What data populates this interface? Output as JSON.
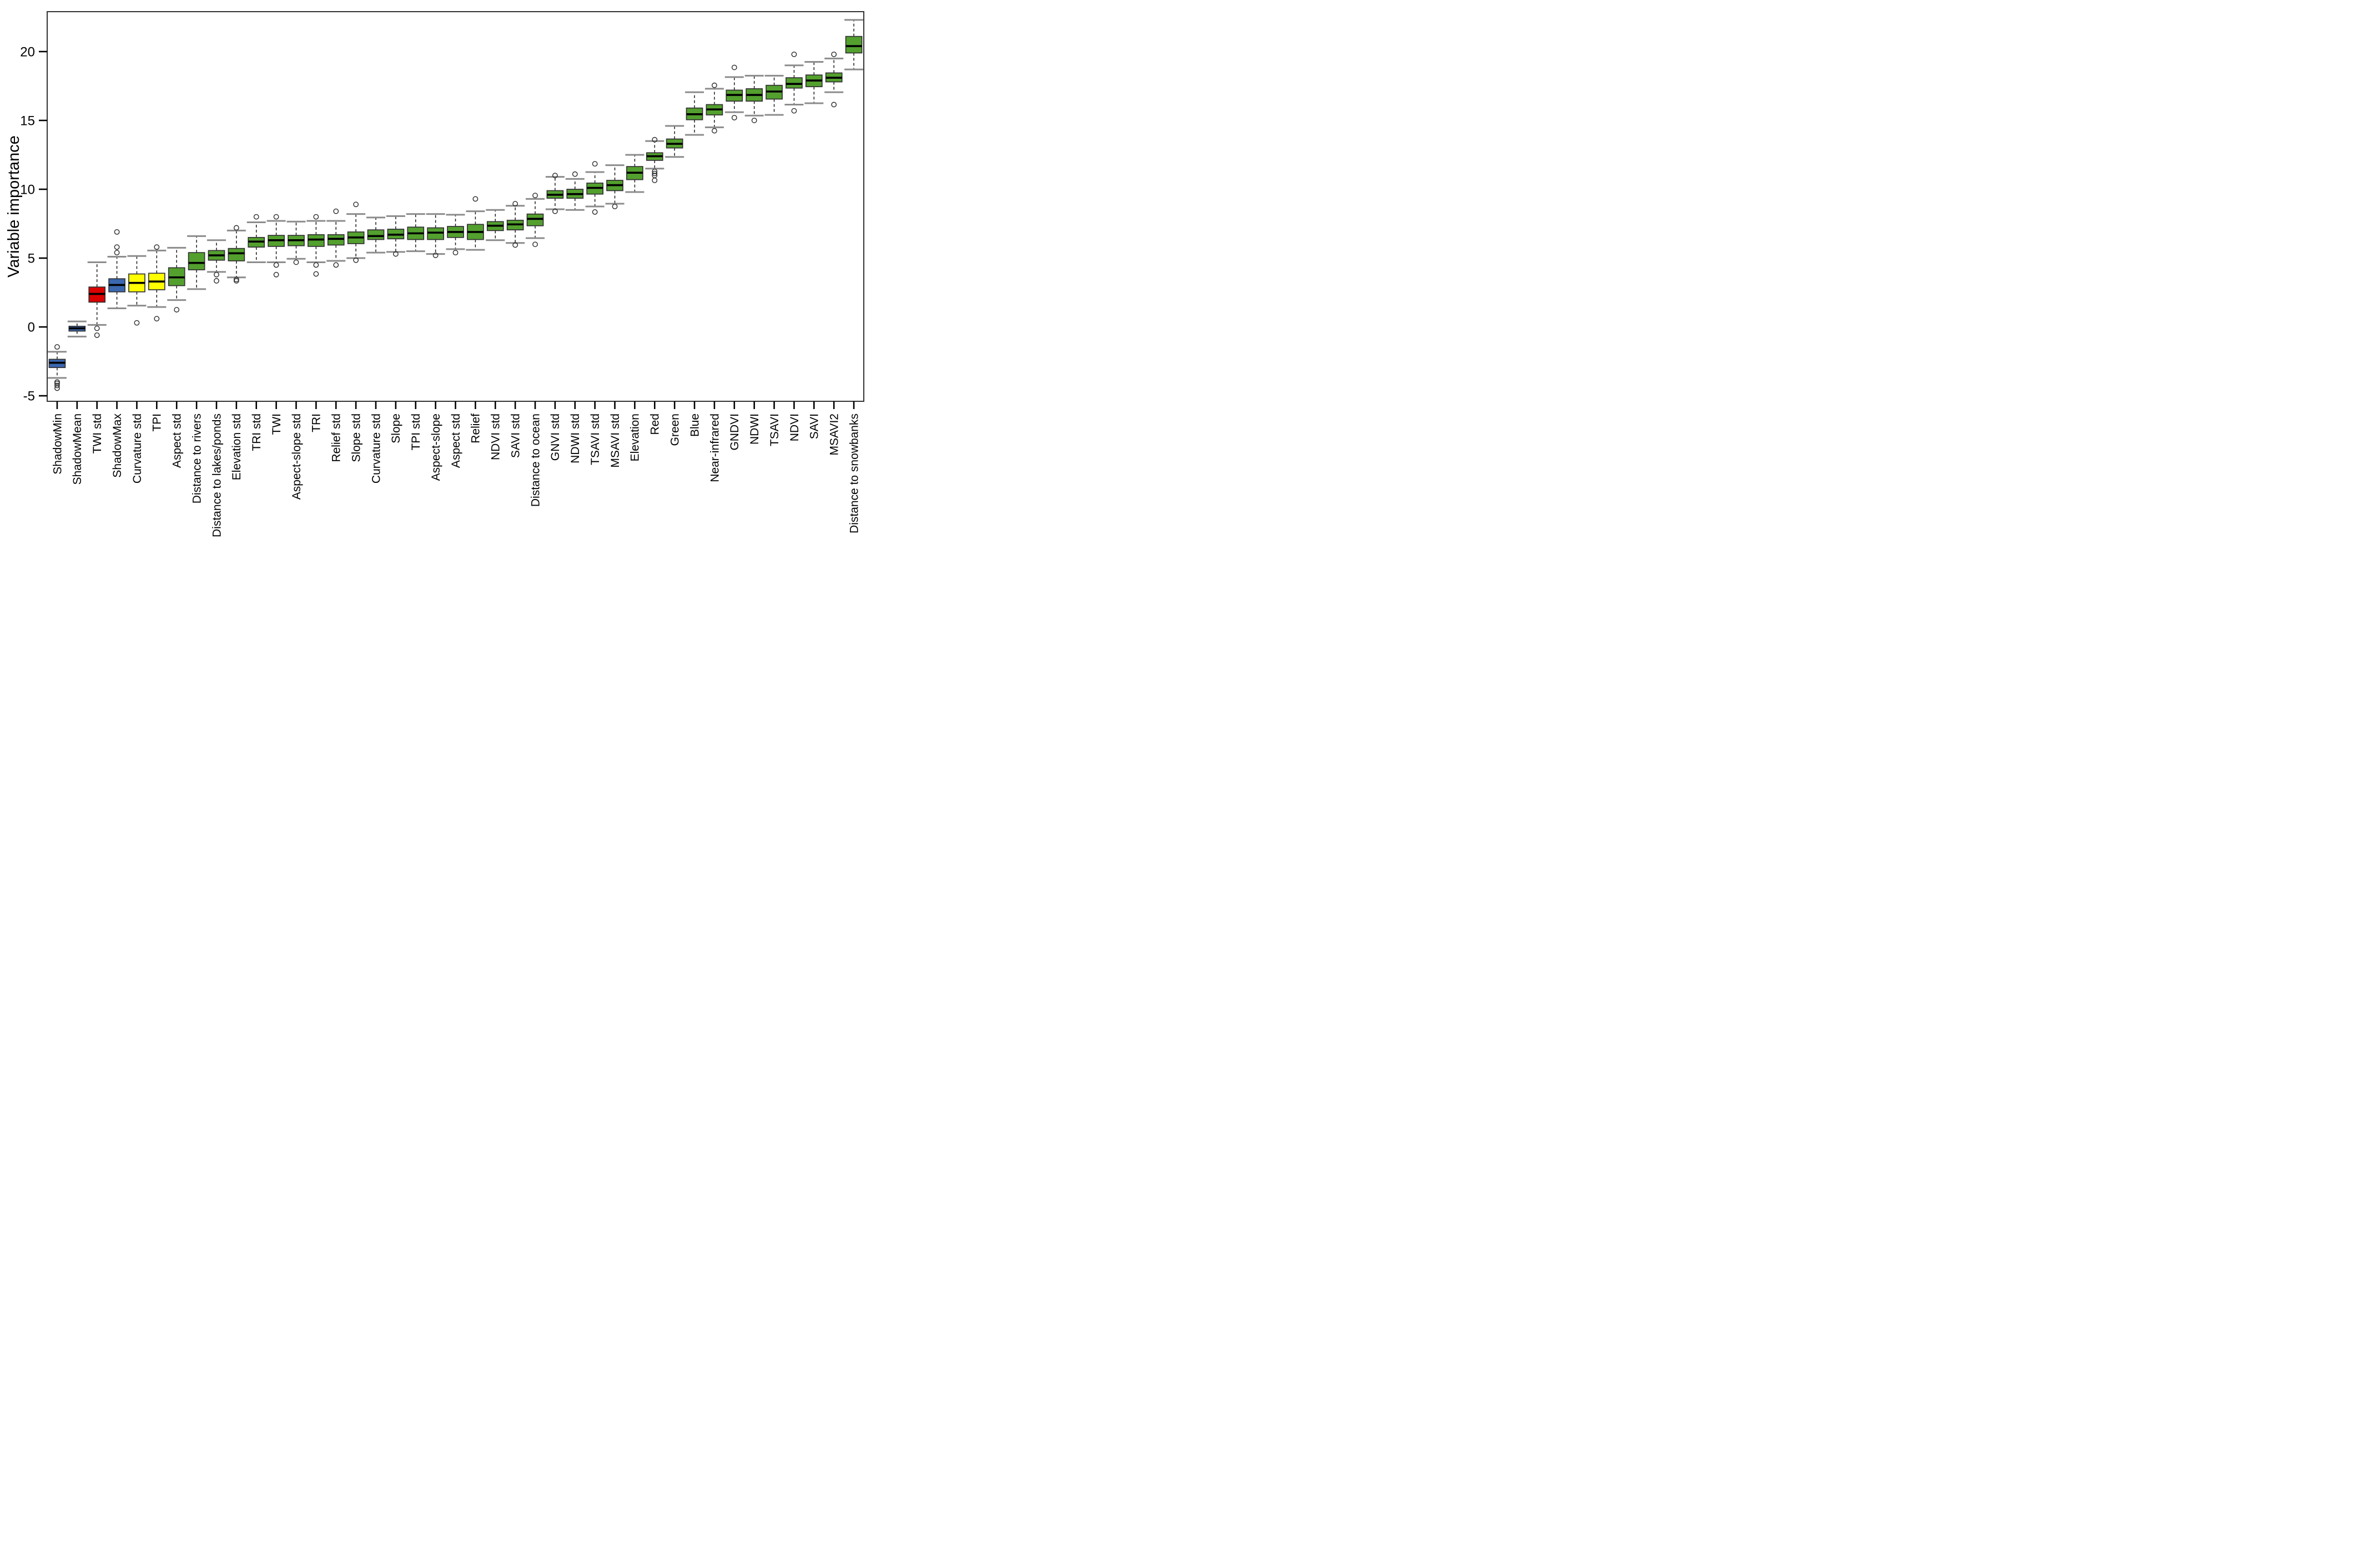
{
  "chart_data": {
    "type": "boxplot",
    "title": "",
    "xlabel": "",
    "ylabel": "Variable importance",
    "yticks": [
      -5,
      0,
      5,
      10,
      15,
      20
    ],
    "ylim": [
      -5.4,
      22.9
    ],
    "grid": false,
    "legend": null,
    "orientation": "vertical",
    "colors": {
      "blue": "#3A67AF",
      "red": "#D90000",
      "yellow": "#FFFF00",
      "green": "#53A02E"
    },
    "stroke_colors": {
      "box_border": "#333333",
      "median": "#000000",
      "whisker": "#1a1a1a",
      "cap": "#8c8c8c",
      "axis": "#333333"
    },
    "boxes": [
      {
        "label": "ShadowMin",
        "color": "blue",
        "median": -2.6,
        "q1": -2.95,
        "q3": -2.35,
        "whisker_low": -3.7,
        "whisker_high": -1.8,
        "outliers": [
          -1.45,
          -4.0,
          -4.1,
          -4.25,
          -4.45
        ]
      },
      {
        "label": "ShadowMean",
        "color": "blue",
        "median": -0.1,
        "q1": -0.3,
        "q3": 0.05,
        "whisker_low": -0.7,
        "whisker_high": 0.4,
        "outliers": []
      },
      {
        "label": "TWI std",
        "color": "red",
        "median": 2.4,
        "q1": 1.8,
        "q3": 2.9,
        "whisker_low": 0.15,
        "whisker_high": 4.7,
        "outliers": [
          -0.1,
          -0.6
        ]
      },
      {
        "label": "ShadowMax",
        "color": "blue",
        "median": 3.05,
        "q1": 2.55,
        "q3": 3.5,
        "whisker_low": 1.35,
        "whisker_high": 5.1,
        "outliers": [
          5.4,
          5.8,
          6.9
        ]
      },
      {
        "label": "Curvature std",
        "color": "yellow",
        "median": 3.2,
        "q1": 2.55,
        "q3": 3.85,
        "whisker_low": 1.55,
        "whisker_high": 5.15,
        "outliers": [
          0.3
        ]
      },
      {
        "label": "TPI",
        "color": "yellow",
        "median": 3.3,
        "q1": 2.7,
        "q3": 3.9,
        "whisker_low": 1.45,
        "whisker_high": 5.55,
        "outliers": [
          5.8,
          0.6
        ]
      },
      {
        "label": "Aspect std",
        "color": "green",
        "median": 3.6,
        "q1": 3.0,
        "q3": 4.3,
        "whisker_low": 1.95,
        "whisker_high": 5.75,
        "outliers": [
          1.25
        ]
      },
      {
        "label": "Distance to rivers",
        "color": "green",
        "median": 4.65,
        "q1": 4.15,
        "q3": 5.4,
        "whisker_low": 2.75,
        "whisker_high": 6.6,
        "outliers": []
      },
      {
        "label": "Distance to lakes/ponds",
        "color": "green",
        "median": 5.2,
        "q1": 4.85,
        "q3": 5.55,
        "whisker_low": 4.0,
        "whisker_high": 6.3,
        "outliers": [
          3.8,
          3.35
        ]
      },
      {
        "label": "Elevation std",
        "color": "green",
        "median": 5.35,
        "q1": 4.8,
        "q3": 5.7,
        "whisker_low": 3.6,
        "whisker_high": 7.0,
        "outliers": [
          7.2,
          3.45,
          3.35
        ]
      },
      {
        "label": "TRI std",
        "color": "green",
        "median": 6.2,
        "q1": 5.8,
        "q3": 6.5,
        "whisker_low": 4.7,
        "whisker_high": 7.6,
        "outliers": [
          8.0
        ]
      },
      {
        "label": "TWI",
        "color": "green",
        "median": 6.3,
        "q1": 5.85,
        "q3": 6.65,
        "whisker_low": 4.7,
        "whisker_high": 7.7,
        "outliers": [
          8.0,
          4.5,
          3.8
        ]
      },
      {
        "label": "Aspect-slope std",
        "color": "green",
        "median": 6.3,
        "q1": 5.9,
        "q3": 6.65,
        "whisker_low": 4.95,
        "whisker_high": 7.65,
        "outliers": [
          4.7
        ]
      },
      {
        "label": "TRI",
        "color": "green",
        "median": 6.35,
        "q1": 5.85,
        "q3": 6.7,
        "whisker_low": 4.7,
        "whisker_high": 7.7,
        "outliers": [
          8.0,
          4.5,
          3.85
        ]
      },
      {
        "label": "Relief std",
        "color": "green",
        "median": 6.4,
        "q1": 5.95,
        "q3": 6.7,
        "whisker_low": 4.8,
        "whisker_high": 7.7,
        "outliers": [
          8.4,
          4.5
        ]
      },
      {
        "label": "Slope std",
        "color": "green",
        "median": 6.5,
        "q1": 6.05,
        "q3": 6.9,
        "whisker_low": 5.0,
        "whisker_high": 8.2,
        "outliers": [
          8.9,
          4.85
        ]
      },
      {
        "label": "Curvature std",
        "color": "green",
        "median": 6.6,
        "q1": 6.35,
        "q3": 7.05,
        "whisker_low": 5.4,
        "whisker_high": 7.95,
        "outliers": []
      },
      {
        "label": "Slope",
        "color": "green",
        "median": 6.7,
        "q1": 6.4,
        "q3": 7.1,
        "whisker_low": 5.45,
        "whisker_high": 8.05,
        "outliers": [
          5.3
        ]
      },
      {
        "label": "TPI std",
        "color": "green",
        "median": 6.8,
        "q1": 6.35,
        "q3": 7.25,
        "whisker_low": 5.5,
        "whisker_high": 8.2,
        "outliers": []
      },
      {
        "label": "Aspect-slope",
        "color": "green",
        "median": 6.85,
        "q1": 6.35,
        "q3": 7.2,
        "whisker_low": 5.3,
        "whisker_high": 8.2,
        "outliers": [
          5.2
        ]
      },
      {
        "label": "Aspect std",
        "color": "green",
        "median": 6.9,
        "q1": 6.5,
        "q3": 7.3,
        "whisker_low": 5.65,
        "whisker_high": 8.15,
        "outliers": [
          5.4
        ]
      },
      {
        "label": "Relief",
        "color": "green",
        "median": 6.9,
        "q1": 6.35,
        "q3": 7.45,
        "whisker_low": 5.6,
        "whisker_high": 8.4,
        "outliers": [
          9.3
        ]
      },
      {
        "label": "NDVI std",
        "color": "green",
        "median": 7.35,
        "q1": 7.0,
        "q3": 7.65,
        "whisker_low": 6.3,
        "whisker_high": 8.5,
        "outliers": []
      },
      {
        "label": "SAVI std",
        "color": "green",
        "median": 7.45,
        "q1": 7.05,
        "q3": 7.75,
        "whisker_low": 6.1,
        "whisker_high": 8.8,
        "outliers": [
          8.95,
          5.95
        ]
      },
      {
        "label": "Distance to ocean",
        "color": "green",
        "median": 7.85,
        "q1": 7.35,
        "q3": 8.2,
        "whisker_low": 6.45,
        "whisker_high": 9.3,
        "outliers": [
          9.55,
          6.0
        ]
      },
      {
        "label": "GNVI std",
        "color": "green",
        "median": 9.6,
        "q1": 9.35,
        "q3": 9.9,
        "whisker_low": 8.55,
        "whisker_high": 10.9,
        "outliers": [
          11.0,
          8.4
        ]
      },
      {
        "label": "NDWI std",
        "color": "green",
        "median": 9.65,
        "q1": 9.35,
        "q3": 10.0,
        "whisker_low": 8.5,
        "whisker_high": 10.75,
        "outliers": [
          11.1
        ]
      },
      {
        "label": "TSAVI std",
        "color": "green",
        "median": 10.1,
        "q1": 9.65,
        "q3": 10.45,
        "whisker_low": 8.75,
        "whisker_high": 11.25,
        "outliers": [
          11.85,
          8.35
        ]
      },
      {
        "label": "MSAVI std",
        "color": "green",
        "median": 10.3,
        "q1": 9.9,
        "q3": 10.65,
        "whisker_low": 8.95,
        "whisker_high": 11.75,
        "outliers": [
          8.75
        ]
      },
      {
        "label": "Elevation",
        "color": "green",
        "median": 11.2,
        "q1": 10.7,
        "q3": 11.65,
        "whisker_low": 9.8,
        "whisker_high": 12.5,
        "outliers": []
      },
      {
        "label": "Red",
        "color": "green",
        "median": 12.4,
        "q1": 12.1,
        "q3": 12.65,
        "whisker_low": 11.5,
        "whisker_high": 13.5,
        "outliers": [
          13.6,
          11.3,
          11.15,
          11.0,
          10.65
        ]
      },
      {
        "label": "Green",
        "color": "green",
        "median": 13.3,
        "q1": 13.0,
        "q3": 13.65,
        "whisker_low": 12.35,
        "whisker_high": 14.6,
        "outliers": []
      },
      {
        "label": "Blue",
        "color": "green",
        "median": 15.45,
        "q1": 15.05,
        "q3": 15.9,
        "whisker_low": 13.95,
        "whisker_high": 17.05,
        "outliers": []
      },
      {
        "label": "Near-infrared",
        "color": "green",
        "median": 15.8,
        "q1": 15.4,
        "q3": 16.15,
        "whisker_low": 14.5,
        "whisker_high": 17.3,
        "outliers": [
          17.55,
          14.25
        ]
      },
      {
        "label": "GNDVI",
        "color": "green",
        "median": 16.85,
        "q1": 16.4,
        "q3": 17.2,
        "whisker_low": 15.6,
        "whisker_high": 18.15,
        "outliers": [
          18.85,
          15.2
        ]
      },
      {
        "label": "NDWI",
        "color": "green",
        "median": 16.85,
        "q1": 16.4,
        "q3": 17.3,
        "whisker_low": 15.35,
        "whisker_high": 18.25,
        "outliers": [
          15.0
        ]
      },
      {
        "label": "TSAVI",
        "color": "green",
        "median": 17.1,
        "q1": 16.55,
        "q3": 17.55,
        "whisker_low": 15.4,
        "whisker_high": 18.25,
        "outliers": []
      },
      {
        "label": "NDVI",
        "color": "green",
        "median": 17.65,
        "q1": 17.35,
        "q3": 18.1,
        "whisker_low": 16.15,
        "whisker_high": 19.0,
        "outliers": [
          19.8,
          15.7
        ]
      },
      {
        "label": "SAVI",
        "color": "green",
        "median": 17.9,
        "q1": 17.45,
        "q3": 18.3,
        "whisker_low": 16.25,
        "whisker_high": 19.25,
        "outliers": []
      },
      {
        "label": "MSAVI2",
        "color": "green",
        "median": 18.1,
        "q1": 17.8,
        "q3": 18.45,
        "whisker_low": 17.05,
        "whisker_high": 19.5,
        "outliers": [
          19.8,
          16.15
        ]
      },
      {
        "label": "Distance to snowbanks",
        "color": "green",
        "median": 20.4,
        "q1": 19.9,
        "q3": 21.1,
        "whisker_low": 18.7,
        "whisker_high": 22.3,
        "outliers": []
      }
    ]
  }
}
